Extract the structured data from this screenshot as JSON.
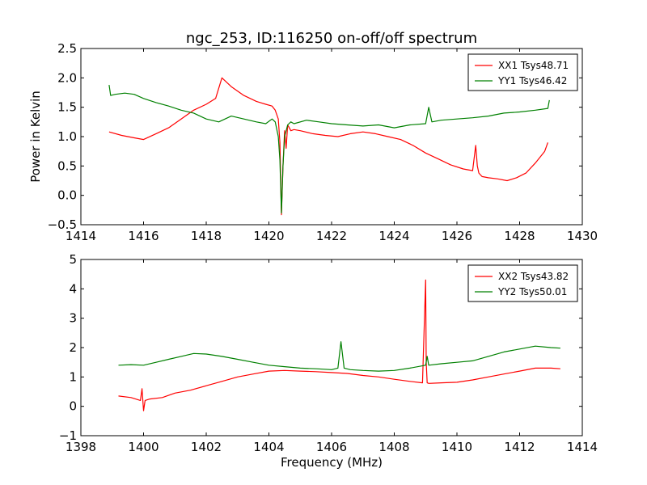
{
  "chart_data": [
    {
      "type": "line",
      "title": "ngc_253, ID:116250 on-off/off spectrum",
      "xlabel": "",
      "ylabel": "Power in Kelvin",
      "xlim": [
        1414,
        1430
      ],
      "ylim": [
        -0.5,
        2.5
      ],
      "xticks": [
        1414,
        1416,
        1418,
        1420,
        1422,
        1424,
        1426,
        1428,
        1430
      ],
      "yticks": [
        -0.5,
        0.0,
        0.5,
        1.0,
        1.5,
        2.0,
        2.5
      ],
      "ytick_labels": [
        "−0.5",
        "0.0",
        "0.5",
        "1.0",
        "1.5",
        "2.0",
        "2.5"
      ],
      "legend_position": "top-right",
      "series": [
        {
          "name": "XX1 Tsys48.71",
          "color": "#ff0000",
          "x": [
            1414.9,
            1415.3,
            1415.7,
            1416.0,
            1416.4,
            1416.8,
            1417.2,
            1417.6,
            1418.0,
            1418.3,
            1418.5,
            1418.8,
            1419.2,
            1419.6,
            1419.9,
            1420.1,
            1420.2,
            1420.3,
            1420.35,
            1420.4,
            1420.45,
            1420.5,
            1420.55,
            1420.6,
            1420.65,
            1420.7,
            1420.8,
            1421.0,
            1421.4,
            1421.8,
            1422.2,
            1422.6,
            1423.0,
            1423.4,
            1423.8,
            1424.2,
            1424.6,
            1425.0,
            1425.4,
            1425.8,
            1426.2,
            1426.5,
            1426.6,
            1426.65,
            1426.7,
            1426.8,
            1427.0,
            1427.3,
            1427.6,
            1427.9,
            1428.2,
            1428.5,
            1428.8,
            1428.9
          ],
          "y": [
            1.08,
            1.02,
            0.98,
            0.95,
            1.05,
            1.15,
            1.3,
            1.45,
            1.55,
            1.65,
            2.0,
            1.85,
            1.7,
            1.6,
            1.55,
            1.52,
            1.45,
            1.3,
            0.9,
            -0.33,
            0.5,
            1.1,
            0.8,
            1.2,
            1.15,
            1.1,
            1.12,
            1.1,
            1.05,
            1.02,
            1.0,
            1.05,
            1.08,
            1.05,
            1.0,
            0.95,
            0.85,
            0.72,
            0.62,
            0.52,
            0.45,
            0.42,
            0.85,
            0.5,
            0.38,
            0.32,
            0.3,
            0.28,
            0.25,
            0.3,
            0.38,
            0.55,
            0.75,
            0.9
          ]
        },
        {
          "name": "YY1 Tsys46.42",
          "color": "#008000",
          "x": [
            1414.9,
            1414.95,
            1415.1,
            1415.4,
            1415.7,
            1416.0,
            1416.4,
            1416.8,
            1417.2,
            1417.6,
            1418.0,
            1418.4,
            1418.8,
            1419.2,
            1419.6,
            1419.9,
            1420.1,
            1420.2,
            1420.3,
            1420.35,
            1420.4,
            1420.45,
            1420.5,
            1420.6,
            1420.7,
            1420.8,
            1421.2,
            1421.6,
            1422.0,
            1422.5,
            1423.0,
            1423.5,
            1424.0,
            1424.5,
            1425.0,
            1425.1,
            1425.2,
            1425.5,
            1426.0,
            1426.5,
            1427.0,
            1427.5,
            1428.0,
            1428.5,
            1428.9,
            1428.95
          ],
          "y": [
            1.88,
            1.7,
            1.72,
            1.74,
            1.72,
            1.65,
            1.58,
            1.52,
            1.45,
            1.4,
            1.3,
            1.25,
            1.35,
            1.3,
            1.25,
            1.22,
            1.3,
            1.25,
            1.0,
            0.6,
            -0.3,
            0.5,
            1.0,
            1.2,
            1.25,
            1.22,
            1.28,
            1.25,
            1.22,
            1.2,
            1.18,
            1.2,
            1.15,
            1.2,
            1.22,
            1.5,
            1.25,
            1.28,
            1.3,
            1.32,
            1.35,
            1.4,
            1.42,
            1.45,
            1.48,
            1.62
          ]
        }
      ]
    },
    {
      "type": "line",
      "title": "",
      "xlabel": "Frequency (MHz)",
      "ylabel": "",
      "xlim": [
        1398,
        1414
      ],
      "ylim": [
        -1,
        5
      ],
      "xticks": [
        1398,
        1400,
        1402,
        1404,
        1406,
        1408,
        1410,
        1412,
        1414
      ],
      "yticks": [
        -1,
        0,
        1,
        2,
        3,
        4,
        5
      ],
      "ytick_labels": [
        "−1",
        "0",
        "1",
        "2",
        "3",
        "4",
        "5"
      ],
      "legend_position": "top-right",
      "series": [
        {
          "name": "XX2 Tsys43.82",
          "color": "#ff0000",
          "x": [
            1399.2,
            1399.6,
            1399.9,
            1399.95,
            1400.0,
            1400.05,
            1400.2,
            1400.6,
            1401.0,
            1401.5,
            1402.0,
            1402.5,
            1403.0,
            1403.5,
            1404.0,
            1404.5,
            1405.0,
            1405.5,
            1406.0,
            1406.5,
            1407.0,
            1407.5,
            1408.0,
            1408.5,
            1408.9,
            1409.0,
            1409.02,
            1409.05,
            1409.1,
            1409.5,
            1410.0,
            1410.5,
            1411.0,
            1411.5,
            1412.0,
            1412.5,
            1413.0,
            1413.3
          ],
          "y": [
            0.35,
            0.3,
            0.2,
            0.6,
            -0.15,
            0.2,
            0.25,
            0.3,
            0.45,
            0.55,
            0.7,
            0.85,
            1.0,
            1.1,
            1.2,
            1.22,
            1.2,
            1.18,
            1.15,
            1.12,
            1.05,
            1.0,
            0.92,
            0.85,
            0.8,
            4.3,
            1.5,
            0.8,
            0.78,
            0.8,
            0.82,
            0.9,
            1.0,
            1.1,
            1.2,
            1.3,
            1.3,
            1.28
          ]
        },
        {
          "name": "YY2 Tsys50.01",
          "color": "#008000",
          "x": [
            1399.2,
            1399.6,
            1400.0,
            1400.4,
            1400.8,
            1401.2,
            1401.6,
            1402.0,
            1402.5,
            1403.0,
            1403.5,
            1404.0,
            1404.5,
            1405.0,
            1405.5,
            1406.0,
            1406.2,
            1406.3,
            1406.4,
            1406.6,
            1407.0,
            1407.5,
            1408.0,
            1408.5,
            1409.0,
            1409.05,
            1409.1,
            1409.5,
            1410.0,
            1410.5,
            1411.0,
            1411.5,
            1412.0,
            1412.5,
            1413.0,
            1413.3
          ],
          "y": [
            1.4,
            1.42,
            1.4,
            1.5,
            1.6,
            1.7,
            1.8,
            1.78,
            1.7,
            1.6,
            1.5,
            1.4,
            1.35,
            1.3,
            1.28,
            1.25,
            1.3,
            2.2,
            1.3,
            1.25,
            1.22,
            1.2,
            1.22,
            1.3,
            1.4,
            1.7,
            1.4,
            1.45,
            1.5,
            1.55,
            1.7,
            1.85,
            1.95,
            2.05,
            2.0,
            1.98
          ]
        }
      ]
    }
  ]
}
